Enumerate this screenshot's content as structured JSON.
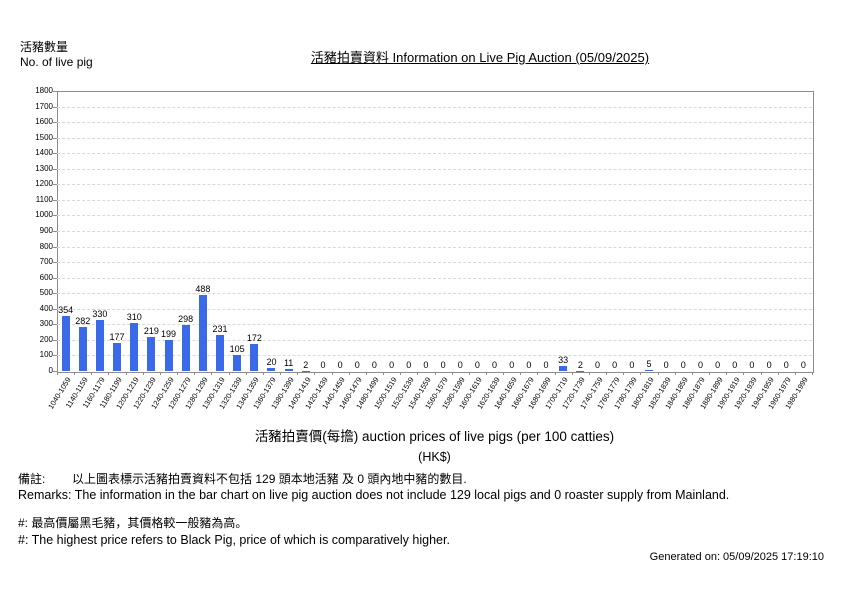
{
  "page": {
    "ylabel_zh": "活豬數量",
    "ylabel_en": "No. of live pig",
    "title": "活豬拍賣資料 Information on Live Pig Auction (05/09/2025)"
  },
  "chart_data": {
    "type": "bar",
    "title": "活豬拍賣資料 Information on Live Pig Auction (05/09/2025)",
    "categories": [
      "1040-1059",
      "1140-1159",
      "1160-1179",
      "1180-1199",
      "1200-1219",
      "1220-1239",
      "1240-1259",
      "1260-1279",
      "1280-1299",
      "1300-1319",
      "1320-1339",
      "1340-1359",
      "1360-1379",
      "1380-1399",
      "1400-1419",
      "1420-1439",
      "1440-1459",
      "1460-1479",
      "1480-1499",
      "1500-1519",
      "1520-1539",
      "1540-1559",
      "1560-1579",
      "1580-1599",
      "1600-1619",
      "1620-1639",
      "1640-1659",
      "1660-1679",
      "1680-1699",
      "1700-1719",
      "1720-1739",
      "1740-1759",
      "1760-1779",
      "1780-1799",
      "1800-1819",
      "1820-1839",
      "1840-1859",
      "1860-1879",
      "1880-1899",
      "1900-1919",
      "1920-1939",
      "1940-1959",
      "1960-1979",
      "1980-1999"
    ],
    "values": [
      354,
      282,
      330,
      177,
      310,
      219,
      199,
      298,
      488,
      231,
      105,
      172,
      20,
      11,
      2,
      0,
      0,
      0,
      0,
      0,
      0,
      0,
      0,
      0,
      0,
      0,
      0,
      0,
      0,
      33,
      2,
      0,
      0,
      0,
      5,
      0,
      0,
      0,
      0,
      0,
      0,
      0,
      0,
      0
    ],
    "xlabel": "活豬拍賣價(每擔) auction prices of live pigs (per 100 catties)",
    "xlabel_unit": "(HK$)",
    "ylabel": "活豬數量 No. of live pig",
    "ylim": [
      0,
      1800
    ],
    "ytick_step": 100,
    "grid": "horizontal-dashed",
    "legend": "none",
    "bar_color": "#3a6ae8",
    "axis_color": "#8c8c8c",
    "gridline_color": "#d9d9d9"
  },
  "footer": {
    "remarks_zh": "備註:        以上圖表標示活豬拍賣資料不包括 129 頭本地活豬 及 0 頭內地中豬的數目.",
    "remarks_en": "Remarks: The information in the bar chart on live pig auction does not include 129 local pigs and 0 roaster supply from Mainland.",
    "note_zh": "#: 最高價屬黑毛豬，其價格較一般豬為高。",
    "note_en": "#: The highest price refers to Black Pig, price of which is comparatively higher.",
    "generated": "Generated on: 05/09/2025 17:19:10"
  }
}
